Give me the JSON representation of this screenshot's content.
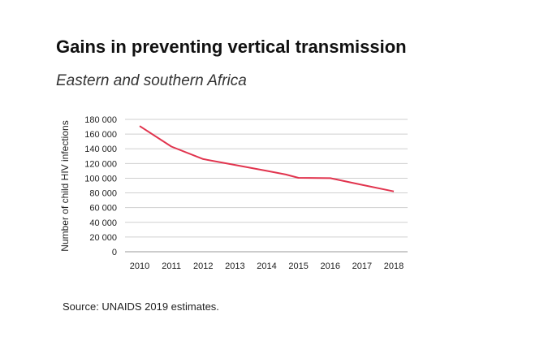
{
  "header": {
    "title": "Gains in preventing vertical transmission",
    "subtitle": "Eastern and southern Africa"
  },
  "footer": {
    "source": "Source: UNAIDS 2019 estimates."
  },
  "chart_data": {
    "type": "line",
    "title": "Gains in preventing vertical transmission",
    "subtitle": "Eastern and southern Africa",
    "xlabel": "",
    "ylabel": "Number of child HIV infections",
    "x": [
      2010,
      2011,
      2012,
      2013,
      2014,
      2014.6,
      2015,
      2016,
      2017,
      2018
    ],
    "x_ticks": [
      "2010",
      "2011",
      "2012",
      "2013",
      "2014",
      "2015",
      "2016",
      "2017",
      "2018"
    ],
    "y_ticks": [
      "0",
      "20 000",
      "40 000",
      "60 000",
      "80 000",
      "100 000",
      "120 000",
      "140 000",
      "160 000",
      "180 000"
    ],
    "ylim": [
      0,
      180000
    ],
    "xlim": [
      2010,
      2018
    ],
    "grid": true,
    "series": [
      {
        "name": "",
        "color": "#e1344e",
        "values": [
          171000,
          143000,
          126000,
          118000,
          110000,
          105000,
          100500,
          100000,
          91000,
          82000
        ]
      }
    ]
  }
}
